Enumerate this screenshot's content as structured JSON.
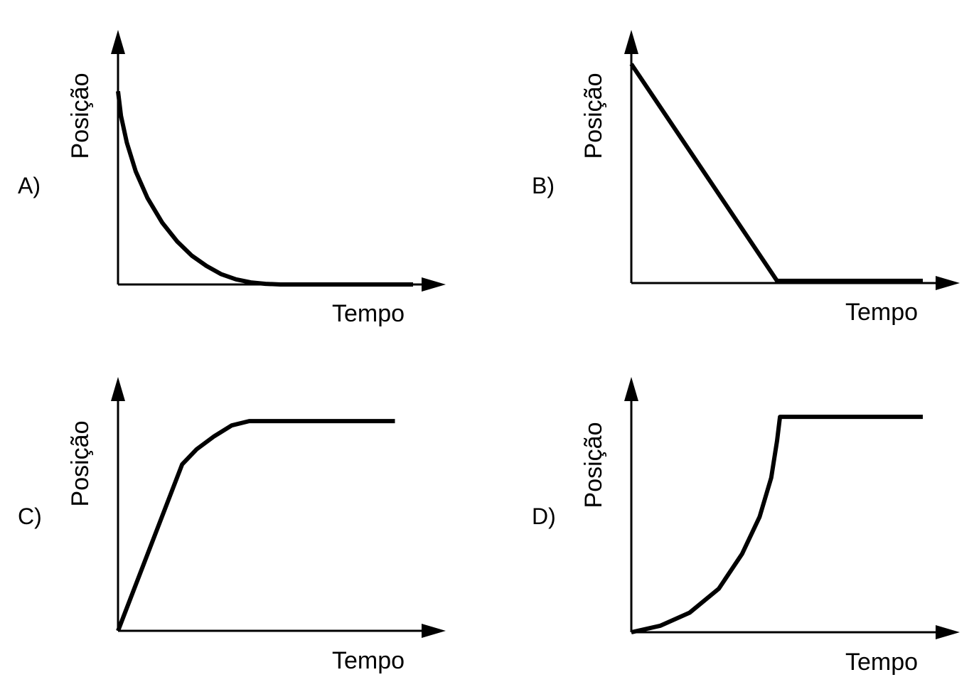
{
  "chart_data": [
    {
      "type": "line",
      "panel_label": "A)",
      "xlabel": "Tempo",
      "ylabel": "Posição",
      "grid": false,
      "series": [
        {
          "points": [
            [
              0,
              0.94
            ],
            [
              0.01,
              0.82
            ],
            [
              0.03,
              0.69
            ],
            [
              0.06,
              0.55
            ],
            [
              0.1,
              0.42
            ],
            [
              0.15,
              0.3
            ],
            [
              0.2,
              0.21
            ],
            [
              0.25,
              0.14
            ],
            [
              0.3,
              0.09
            ],
            [
              0.35,
              0.05
            ],
            [
              0.4,
              0.025
            ],
            [
              0.45,
              0.01
            ],
            [
              0.5,
              0.003
            ],
            [
              0.55,
              0
            ],
            [
              1,
              0
            ]
          ]
        }
      ]
    },
    {
      "type": "line",
      "panel_label": "B)",
      "xlabel": "Tempo",
      "ylabel": "Posição",
      "grid": false,
      "series": [
        {
          "points": [
            [
              0,
              1.0
            ],
            [
              0.5,
              0.01
            ],
            [
              1,
              0.01
            ]
          ]
        }
      ]
    },
    {
      "type": "line",
      "panel_label": "C)",
      "xlabel": "Tempo",
      "ylabel": "Posição",
      "grid": false,
      "series": [
        {
          "points": [
            [
              0,
              0
            ],
            [
              0.22,
              0.77
            ],
            [
              0.27,
              0.84
            ],
            [
              0.33,
              0.9
            ],
            [
              0.39,
              0.95
            ],
            [
              0.45,
              0.97
            ],
            [
              0.95,
              0.97
            ]
          ]
        }
      ]
    },
    {
      "type": "line",
      "panel_label": "D)",
      "xlabel": "Tempo",
      "ylabel": "Posição",
      "grid": false,
      "series": [
        {
          "points": [
            [
              0,
              0
            ],
            [
              0.1,
              0.03
            ],
            [
              0.2,
              0.09
            ],
            [
              0.3,
              0.2
            ],
            [
              0.38,
              0.36
            ],
            [
              0.44,
              0.53
            ],
            [
              0.48,
              0.71
            ],
            [
              0.5,
              0.88
            ],
            [
              0.51,
              0.99
            ],
            [
              1,
              0.99
            ]
          ]
        }
      ]
    }
  ],
  "colors": {
    "line": "#000000",
    "axis": "#000000",
    "background": "#ffffff"
  }
}
